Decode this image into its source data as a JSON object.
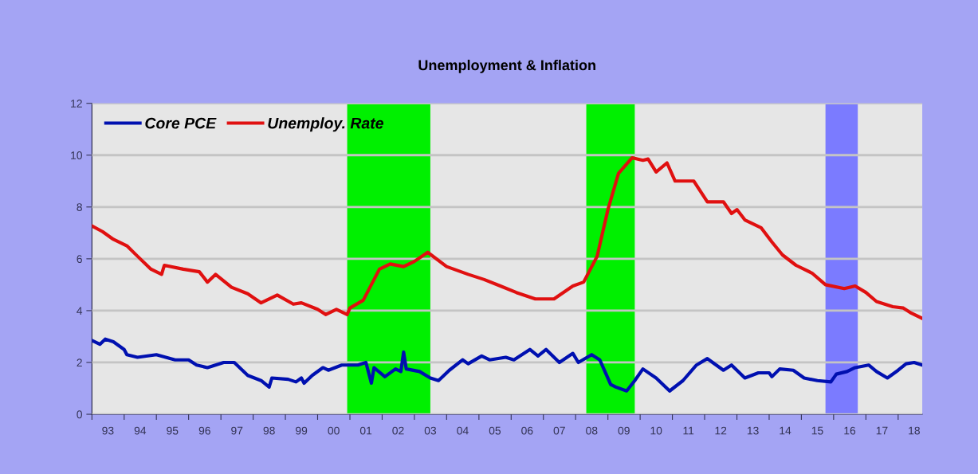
{
  "chart_data": {
    "type": "line",
    "title": "Unemployment & Inflation",
    "series": [
      {
        "name": "Core PCE",
        "color": "#0010b0",
        "x": [
          "1993-01",
          "1993-04",
          "1993-06",
          "1993-09",
          "1994-01",
          "1994-02",
          "1994-06",
          "1995-01",
          "1995-08",
          "1996-01",
          "1996-04",
          "1996-08",
          "1997-02",
          "1997-06",
          "1997-11",
          "1998-04",
          "1998-07",
          "1998-08",
          "1999-02",
          "1999-05",
          "1999-07",
          "1999-08",
          "1999-11",
          "2000-03",
          "2000-05",
          "2000-10",
          "2001-04",
          "2001-07",
          "2001-09",
          "2001-10",
          "2002-02",
          "2002-06",
          "2002-08",
          "2002-09",
          "2002-10",
          "2003-03",
          "2003-07",
          "2003-10",
          "2004-02",
          "2004-07",
          "2004-09",
          "2005-02",
          "2005-05",
          "2005-11",
          "2006-02",
          "2006-08",
          "2006-11",
          "2007-02",
          "2007-07",
          "2007-12",
          "2008-02",
          "2008-07",
          "2008-10",
          "2009-02",
          "2009-04",
          "2009-08",
          "2009-11",
          "2010-02",
          "2010-07",
          "2010-12",
          "2011-05",
          "2011-10",
          "2012-02",
          "2012-04",
          "2012-08",
          "2012-11",
          "2013-04",
          "2013-09",
          "2014-01",
          "2014-02",
          "2014-05",
          "2014-10",
          "2015-02",
          "2015-07",
          "2015-12",
          "2016-02",
          "2016-06",
          "2016-09",
          "2017-02",
          "2017-05",
          "2017-09",
          "2018-01",
          "2018-04",
          "2018-07",
          "2018-10"
        ],
        "values": [
          2.85,
          2.7,
          2.9,
          2.8,
          2.5,
          2.3,
          2.2,
          2.3,
          2.1,
          2.1,
          1.9,
          1.8,
          2.0,
          2.0,
          1.5,
          1.3,
          1.05,
          1.4,
          1.35,
          1.25,
          1.4,
          1.2,
          1.5,
          1.8,
          1.7,
          1.9,
          1.9,
          2.0,
          1.2,
          1.8,
          1.45,
          1.75,
          1.65,
          2.4,
          1.75,
          1.65,
          1.4,
          1.3,
          1.7,
          2.1,
          1.95,
          2.25,
          2.1,
          2.2,
          2.1,
          2.5,
          2.25,
          2.5,
          2.0,
          2.35,
          2.0,
          2.3,
          2.1,
          1.15,
          1.05,
          0.9,
          1.3,
          1.75,
          1.4,
          0.9,
          1.3,
          1.9,
          2.15,
          2.0,
          1.7,
          1.9,
          1.4,
          1.6,
          1.6,
          1.45,
          1.75,
          1.7,
          1.4,
          1.3,
          1.25,
          1.55,
          1.65,
          1.8,
          1.9,
          1.65,
          1.4,
          1.7,
          1.95,
          2.0,
          1.9
        ]
      },
      {
        "name": "Unemploy. Rate",
        "color": "#e01010",
        "x": [
          "1993-01",
          "1993-05",
          "1993-09",
          "1994-02",
          "1994-06",
          "1994-11",
          "1995-03",
          "1995-04",
          "1995-11",
          "1996-05",
          "1996-08",
          "1996-11",
          "1997-05",
          "1997-11",
          "1998-04",
          "1998-10",
          "1999-04",
          "1999-07",
          "2000-01",
          "2000-04",
          "2000-08",
          "2000-12",
          "2001-01",
          "2001-06",
          "2001-12",
          "2002-04",
          "2002-09",
          "2003-01",
          "2003-06",
          "2004-01",
          "2004-09",
          "2005-03",
          "2005-09",
          "2006-03",
          "2006-10",
          "2007-05",
          "2007-12",
          "2008-04",
          "2008-09",
          "2009-01",
          "2009-05",
          "2009-10",
          "2010-02",
          "2010-04",
          "2010-07",
          "2010-11",
          "2011-02",
          "2011-09",
          "2012-02",
          "2012-08",
          "2012-11",
          "2013-01",
          "2013-04",
          "2013-10",
          "2014-02",
          "2014-06",
          "2014-11",
          "2015-05",
          "2015-10",
          "2016-05",
          "2016-09",
          "2017-01",
          "2017-05",
          "2017-11",
          "2018-03",
          "2018-06",
          "2018-10"
        ],
        "values": [
          7.27,
          7.05,
          6.75,
          6.5,
          6.1,
          5.6,
          5.4,
          5.75,
          5.6,
          5.5,
          5.1,
          5.4,
          4.9,
          4.65,
          4.3,
          4.6,
          4.25,
          4.3,
          4.05,
          3.85,
          4.05,
          3.85,
          4.1,
          4.4,
          5.6,
          5.8,
          5.7,
          5.9,
          6.25,
          5.7,
          5.4,
          5.2,
          4.95,
          4.7,
          4.45,
          4.45,
          4.95,
          5.1,
          6.1,
          7.9,
          9.3,
          9.9,
          9.8,
          9.85,
          9.35,
          9.7,
          9.0,
          9.0,
          8.2,
          8.2,
          7.75,
          7.9,
          7.5,
          7.2,
          6.65,
          6.15,
          5.75,
          5.45,
          5.0,
          4.85,
          4.95,
          4.7,
          4.35,
          4.15,
          4.1,
          3.9,
          3.7
        ]
      }
    ],
    "xlim": [
      "1993-01",
      "2018-10"
    ],
    "xticks": [
      {
        "value": "1993-01",
        "label": null
      },
      {
        "value": "1993-07",
        "label": "93"
      },
      {
        "value": "1994-01",
        "label": null
      },
      {
        "value": "1994-07",
        "label": "94"
      },
      {
        "value": "1995-01",
        "label": null
      },
      {
        "value": "1995-07",
        "label": "95"
      },
      {
        "value": "1996-01",
        "label": null
      },
      {
        "value": "1996-07",
        "label": "96"
      },
      {
        "value": "1997-01",
        "label": null
      },
      {
        "value": "1997-07",
        "label": "97"
      },
      {
        "value": "1998-01",
        "label": null
      },
      {
        "value": "1998-07",
        "label": "98"
      },
      {
        "value": "1999-01",
        "label": null
      },
      {
        "value": "1999-07",
        "label": "99"
      },
      {
        "value": "2000-01",
        "label": null
      },
      {
        "value": "2000-07",
        "label": "00"
      },
      {
        "value": "2001-01",
        "label": null
      },
      {
        "value": "2001-07",
        "label": "01"
      },
      {
        "value": "2002-01",
        "label": null
      },
      {
        "value": "2002-07",
        "label": "02"
      },
      {
        "value": "2003-01",
        "label": null
      },
      {
        "value": "2003-07",
        "label": "03"
      },
      {
        "value": "2004-01",
        "label": null
      },
      {
        "value": "2004-07",
        "label": "04"
      },
      {
        "value": "2005-01",
        "label": null
      },
      {
        "value": "2005-07",
        "label": "05"
      },
      {
        "value": "2006-01",
        "label": null
      },
      {
        "value": "2006-07",
        "label": "06"
      },
      {
        "value": "2007-01",
        "label": null
      },
      {
        "value": "2007-07",
        "label": "07"
      },
      {
        "value": "2008-01",
        "label": null
      },
      {
        "value": "2008-07",
        "label": "08"
      },
      {
        "value": "2009-01",
        "label": null
      },
      {
        "value": "2009-07",
        "label": "09"
      },
      {
        "value": "2010-01",
        "label": null
      },
      {
        "value": "2010-07",
        "label": "10"
      },
      {
        "value": "2011-01",
        "label": null
      },
      {
        "value": "2011-07",
        "label": "11"
      },
      {
        "value": "2012-01",
        "label": null
      },
      {
        "value": "2012-07",
        "label": "12"
      },
      {
        "value": "2013-01",
        "label": null
      },
      {
        "value": "2013-07",
        "label": "13"
      },
      {
        "value": "2014-01",
        "label": null
      },
      {
        "value": "2014-07",
        "label": "14"
      },
      {
        "value": "2015-01",
        "label": null
      },
      {
        "value": "2015-07",
        "label": "15"
      },
      {
        "value": "2016-01",
        "label": null
      },
      {
        "value": "2016-07",
        "label": "16"
      },
      {
        "value": "2017-01",
        "label": null
      },
      {
        "value": "2017-07",
        "label": "17"
      },
      {
        "value": "2018-01",
        "label": null
      },
      {
        "value": "2018-07",
        "label": "18"
      }
    ],
    "ylim": [
      0,
      12
    ],
    "yticks": [
      0,
      2,
      4,
      6,
      8,
      10,
      12
    ],
    "bands": [
      {
        "axis": "x",
        "from": "2000-12",
        "to": "2003-07",
        "color": "#00f000"
      },
      {
        "axis": "x",
        "from": "2008-05",
        "to": "2009-11",
        "color": "#00f000"
      },
      {
        "axis": "x",
        "from": "2015-10",
        "to": "2016-10",
        "color": "#7b7bff"
      }
    ],
    "grid": "y",
    "legend": "top left",
    "line_style": "solid",
    "marker": "none"
  }
}
